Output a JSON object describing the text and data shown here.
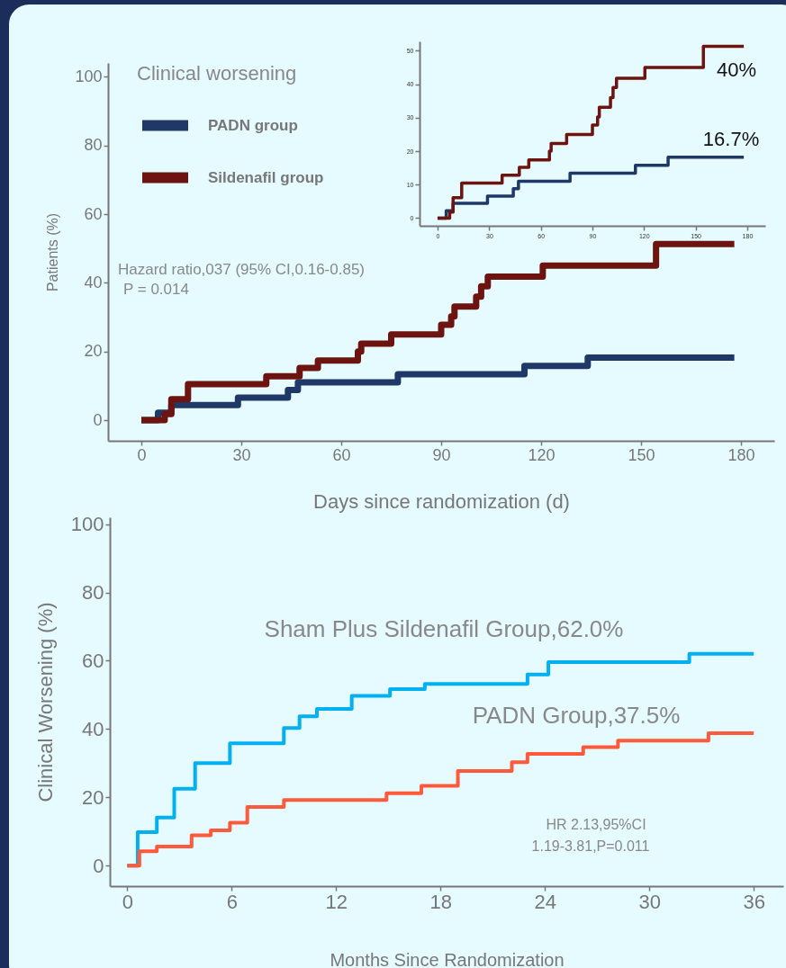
{
  "chart_data": [
    {
      "type": "step",
      "xlabel": "Days since randomization (d)",
      "ylabel": "Patients (%)",
      "legend_title": "Clinical worsening",
      "legend": "top left",
      "grid": false,
      "marker": "none",
      "line_style": "solid",
      "xlim": [
        -10,
        190
      ],
      "ylim": [
        -6,
        104
      ],
      "xticks": [
        0,
        30,
        60,
        90,
        120,
        150,
        180
      ],
      "yticks": [
        0,
        20,
        40,
        60,
        80,
        100
      ],
      "series": [
        {
          "name": "PADN group",
          "color": "#203868",
          "x": [
            0,
            5,
            9,
            29,
            44,
            47,
            77,
            115,
            134,
            178
          ],
          "values": [
            0,
            2.2,
            4.4,
            6.6,
            8.8,
            11,
            13.4,
            15.8,
            18.2,
            18.2
          ]
        },
        {
          "name": "Sildenafil group",
          "color": "#6d1410",
          "x": [
            0,
            7,
            9,
            14,
            37.5,
            47.5,
            53,
            65,
            66,
            75,
            90,
            93,
            94,
            100.5,
            102,
            104,
            120.5,
            154.5,
            178
          ],
          "values": [
            0,
            1.8,
            6.1,
            10.5,
            12.8,
            15.2,
            17.4,
            20,
            22.3,
            25,
            27.8,
            30.2,
            33.1,
            36,
            39,
            41.8,
            45,
            51.3,
            51.3
          ]
        }
      ],
      "annotations": [
        "Hazard ratio,037 (95% CI,0.16-0.85)",
        "P = 0.014"
      ]
    },
    {
      "type": "step",
      "grid": false,
      "marker": "none",
      "line_style": "solid",
      "xlim": [
        -10.5,
        190.5
      ],
      "ylim": [
        -2.3,
        52.8
      ],
      "xticks": [
        0,
        30,
        60,
        90,
        120,
        150,
        180
      ],
      "yticks": [
        0,
        10,
        20,
        30,
        40,
        50
      ],
      "series": [
        {
          "color": "#203868",
          "x": [
            0,
            5,
            9,
            29,
            44,
            47,
            77,
            115,
            134,
            178
          ],
          "values": [
            0,
            2.2,
            4.4,
            6.6,
            8.8,
            11,
            13.4,
            15.8,
            18.2,
            18.2
          ]
        },
        {
          "color": "#6d1410",
          "x": [
            0,
            7,
            9,
            14,
            37.5,
            47.5,
            53,
            65,
            66,
            75,
            90,
            93,
            94,
            100.5,
            102,
            104,
            120.5,
            154.5,
            178
          ],
          "values": [
            0,
            1.8,
            6.1,
            10.5,
            12.8,
            15.2,
            17.4,
            20,
            22.3,
            25,
            27.8,
            30.2,
            33.1,
            36,
            39,
            41.8,
            45,
            51.3,
            51.3
          ]
        }
      ],
      "annotations": [
        "40%",
        "16.7%"
      ]
    },
    {
      "type": "step",
      "xlabel": "Months Since Randomization",
      "ylabel": "Clinical Worsening (%)",
      "grid": false,
      "marker": "none",
      "line_style": "solid",
      "xlim": [
        -1,
        37.7
      ],
      "ylim": [
        -6,
        102
      ],
      "xticks": [
        0,
        6,
        12,
        18,
        24,
        30,
        36
      ],
      "yticks": [
        0,
        20,
        40,
        60,
        80,
        100
      ],
      "series": [
        {
          "color": "#00b0f0",
          "x": [
            0,
            0.6,
            1.7,
            2.7,
            3.9,
            5.9,
            9,
            9.9,
            10.9,
            12.9,
            15.1,
            17.1,
            23,
            24.2,
            32.3,
            36
          ],
          "values": [
            0,
            9.8,
            14.1,
            22.5,
            30,
            35.8,
            40.3,
            43.7,
            45.9,
            49.7,
            51.7,
            53.2,
            56,
            59.6,
            62,
            62
          ]
        },
        {
          "color": "#ff5a3c",
          "x": [
            0,
            0.7,
            1.7,
            3.7,
            4.8,
            5.9,
            6.9,
            9,
            14.9,
            16.9,
            19,
            22.1,
            23,
            26.2,
            28.2,
            33.4,
            36
          ],
          "values": [
            0,
            4.2,
            5.6,
            8.9,
            10.3,
            12.6,
            17.2,
            19.2,
            21.2,
            23.4,
            27.7,
            30.3,
            32.7,
            34.7,
            36.6,
            38.8,
            38.8
          ]
        }
      ],
      "annotations": [
        "Sham Plus Sildenafil Group,62.0%",
        "PADN Group,37.5%",
        "HR 2.13,95%CI",
        "1.19-3.81,P=0.011"
      ]
    }
  ]
}
